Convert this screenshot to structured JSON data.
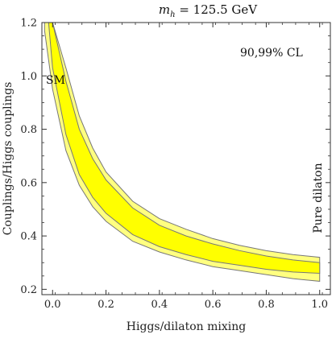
{
  "chart_data": {
    "type": "area",
    "title": "m_h = 125.5 GeV",
    "title_parts": {
      "var": "m",
      "sub": "h",
      "rest": " = 125.5 GeV"
    },
    "xlabel": "Higgs/dilaton mixing",
    "ylabel": "Couplings/Higgs couplings",
    "xlim": [
      -0.04,
      1.04
    ],
    "ylim": [
      0.18,
      1.2
    ],
    "x_ticks": [
      0.0,
      0.2,
      0.4,
      0.6,
      0.8,
      1.0
    ],
    "x_tick_labels": [
      "0.0",
      "0.2",
      "0.4",
      "0.6",
      "0.8",
      "1.0"
    ],
    "y_ticks": [
      0.2,
      0.4,
      0.6,
      0.8,
      1.0,
      1.2
    ],
    "y_tick_labels": [
      "0.2",
      "0.4",
      "0.6",
      "0.8",
      "1.0",
      "1.2"
    ],
    "grid": false,
    "annotations": {
      "cl": "90,99% CL",
      "sm": "SM",
      "pure_dilaton": "Pure dilaton"
    },
    "bands": [
      {
        "level": "99% CL",
        "color": "#ffff80",
        "x": [
          -0.03,
          0.0,
          0.05,
          0.1,
          0.15,
          0.2,
          0.3,
          0.4,
          0.5,
          0.6,
          0.7,
          0.8,
          0.9,
          1.0
        ],
        "lower": [
          1.17,
          0.95,
          0.72,
          0.59,
          0.51,
          0.455,
          0.38,
          0.34,
          0.31,
          0.285,
          0.27,
          0.255,
          0.24,
          0.23
        ],
        "upper": [
          1.2,
          1.2,
          1.03,
          0.85,
          0.73,
          0.64,
          0.53,
          0.465,
          0.425,
          0.39,
          0.365,
          0.345,
          0.33,
          0.32
        ]
      },
      {
        "level": "90% CL",
        "color": "#ffff00",
        "x": [
          -0.015,
          0.0,
          0.05,
          0.1,
          0.15,
          0.2,
          0.3,
          0.4,
          0.5,
          0.6,
          0.7,
          0.8,
          0.9,
          1.0
        ],
        "lower": [
          1.2,
          1.03,
          0.78,
          0.63,
          0.545,
          0.485,
          0.405,
          0.36,
          0.33,
          0.305,
          0.29,
          0.275,
          0.265,
          0.26
        ],
        "upper": [
          1.2,
          1.2,
          0.98,
          0.8,
          0.69,
          0.61,
          0.505,
          0.44,
          0.4,
          0.37,
          0.345,
          0.325,
          0.31,
          0.3
        ]
      }
    ]
  }
}
